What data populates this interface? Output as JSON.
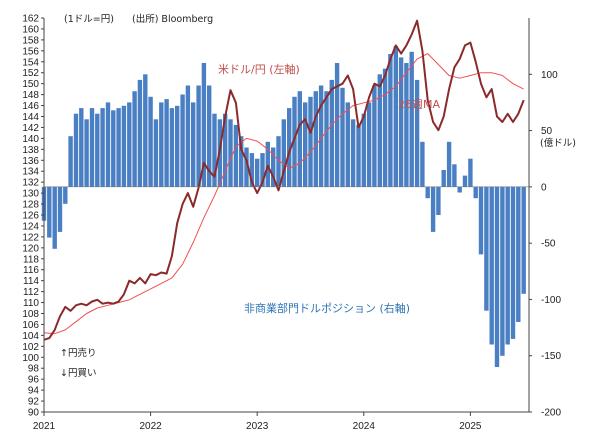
{
  "chart_data": {
    "type": "bar+line",
    "left_axis": {
      "min": 90,
      "max": 162,
      "step": 2
    },
    "right_axis": {
      "min": -200,
      "max": 150,
      "ticks": [
        -200,
        -150,
        -100,
        -50,
        0,
        50,
        100
      ],
      "unit_label": "(億ドル)"
    },
    "x_axis": {
      "start": 2021.0,
      "end": 2025.55,
      "ticks": [
        {
          "value": 2021.0,
          "label": "2021"
        },
        {
          "value": 2022.0,
          "label": "2022"
        },
        {
          "value": 2023.0,
          "label": "2023"
        },
        {
          "value": 2024.0,
          "label": "2024"
        },
        {
          "value": 2025.0,
          "label": "2025"
        }
      ]
    },
    "header_unit": "(1ドル=円)",
    "source": "(出所) Bloomberg",
    "annotations": {
      "yen_sell": "↑円売り",
      "yen_buy": "↓円買い"
    },
    "series": [
      {
        "name": "米ドル/円 (左軸)",
        "axis": "left",
        "kind": "line",
        "color": "#8b2a2a",
        "points": [
          [
            2021.0,
            103.2
          ],
          [
            2021.05,
            103.5
          ],
          [
            2021.1,
            105
          ],
          [
            2021.15,
            107.5
          ],
          [
            2021.2,
            109.2
          ],
          [
            2021.25,
            108.5
          ],
          [
            2021.3,
            109.5
          ],
          [
            2021.35,
            109.8
          ],
          [
            2021.4,
            109.5
          ],
          [
            2021.45,
            110.2
          ],
          [
            2021.5,
            110.5
          ],
          [
            2021.55,
            109.8
          ],
          [
            2021.6,
            110
          ],
          [
            2021.65,
            109.8
          ],
          [
            2021.7,
            110.2
          ],
          [
            2021.75,
            111.5
          ],
          [
            2021.8,
            114
          ],
          [
            2021.85,
            113.5
          ],
          [
            2021.9,
            114.5
          ],
          [
            2021.95,
            113.5
          ],
          [
            2022.0,
            115.2
          ],
          [
            2022.05,
            115
          ],
          [
            2022.1,
            115.5
          ],
          [
            2022.15,
            115.3
          ],
          [
            2022.2,
            118.5
          ],
          [
            2022.25,
            124.5
          ],
          [
            2022.3,
            128
          ],
          [
            2022.35,
            130
          ],
          [
            2022.4,
            127.5
          ],
          [
            2022.45,
            131
          ],
          [
            2022.5,
            135.5
          ],
          [
            2022.55,
            134
          ],
          [
            2022.6,
            133
          ],
          [
            2022.65,
            138
          ],
          [
            2022.7,
            144
          ],
          [
            2022.75,
            148.8
          ],
          [
            2022.8,
            146.5
          ],
          [
            2022.85,
            138
          ],
          [
            2022.9,
            136
          ],
          [
            2022.95,
            132
          ],
          [
            2023.0,
            130
          ],
          [
            2023.05,
            132
          ],
          [
            2023.1,
            135
          ],
          [
            2023.15,
            133
          ],
          [
            2023.2,
            130.5
          ],
          [
            2023.25,
            134
          ],
          [
            2023.3,
            137.5
          ],
          [
            2023.35,
            140
          ],
          [
            2023.4,
            142.5
          ],
          [
            2023.45,
            143.5
          ],
          [
            2023.5,
            141
          ],
          [
            2023.55,
            144
          ],
          [
            2023.6,
            146
          ],
          [
            2023.65,
            147.5
          ],
          [
            2023.7,
            149
          ],
          [
            2023.75,
            149.5
          ],
          [
            2023.8,
            150
          ],
          [
            2023.85,
            151.5
          ],
          [
            2023.9,
            149
          ],
          [
            2023.95,
            142
          ],
          [
            2024.0,
            144
          ],
          [
            2024.05,
            147.5
          ],
          [
            2024.1,
            150
          ],
          [
            2024.15,
            149.5
          ],
          [
            2024.2,
            151.5
          ],
          [
            2024.25,
            154.5
          ],
          [
            2024.3,
            157
          ],
          [
            2024.35,
            155.5
          ],
          [
            2024.4,
            157
          ],
          [
            2024.45,
            159
          ],
          [
            2024.5,
            161.5
          ],
          [
            2024.55,
            156
          ],
          [
            2024.6,
            147
          ],
          [
            2024.65,
            143
          ],
          [
            2024.7,
            141.5
          ],
          [
            2024.75,
            144
          ],
          [
            2024.8,
            149
          ],
          [
            2024.85,
            153
          ],
          [
            2024.9,
            154.5
          ],
          [
            2024.95,
            157
          ],
          [
            2025.0,
            157.5
          ],
          [
            2025.05,
            154
          ],
          [
            2025.1,
            150
          ],
          [
            2025.15,
            147.5
          ],
          [
            2025.2,
            149
          ],
          [
            2025.25,
            144
          ],
          [
            2025.3,
            143
          ],
          [
            2025.35,
            144.5
          ],
          [
            2025.4,
            143
          ],
          [
            2025.45,
            144.5
          ],
          [
            2025.5,
            147
          ]
        ]
      },
      {
        "name": "26週MA",
        "axis": "left",
        "kind": "line",
        "color": "#f05050",
        "points": [
          [
            2021.0,
            104.5
          ],
          [
            2021.1,
            104.3
          ],
          [
            2021.2,
            105
          ],
          [
            2021.3,
            106.5
          ],
          [
            2021.4,
            108
          ],
          [
            2021.5,
            109
          ],
          [
            2021.6,
            109.5
          ],
          [
            2021.7,
            110
          ],
          [
            2021.8,
            110.5
          ],
          [
            2021.9,
            111.5
          ],
          [
            2022.0,
            112.5
          ],
          [
            2022.1,
            113.5
          ],
          [
            2022.2,
            114.5
          ],
          [
            2022.3,
            117
          ],
          [
            2022.4,
            121
          ],
          [
            2022.5,
            125.5
          ],
          [
            2022.6,
            129.5
          ],
          [
            2022.7,
            134
          ],
          [
            2022.8,
            138.5
          ],
          [
            2022.9,
            140
          ],
          [
            2023.0,
            139.5
          ],
          [
            2023.1,
            138
          ],
          [
            2023.2,
            136
          ],
          [
            2023.3,
            134.5
          ],
          [
            2023.4,
            135.5
          ],
          [
            2023.5,
            137.5
          ],
          [
            2023.6,
            140
          ],
          [
            2023.7,
            142.5
          ],
          [
            2023.8,
            144.5
          ],
          [
            2023.9,
            146
          ],
          [
            2024.0,
            146.5
          ],
          [
            2024.1,
            147
          ],
          [
            2024.2,
            148
          ],
          [
            2024.3,
            149.5
          ],
          [
            2024.4,
            152
          ],
          [
            2024.5,
            154.5
          ],
          [
            2024.6,
            155.5
          ],
          [
            2024.7,
            153.5
          ],
          [
            2024.8,
            151.5
          ],
          [
            2024.9,
            151
          ],
          [
            2025.0,
            151.5
          ],
          [
            2025.1,
            152
          ],
          [
            2025.2,
            152
          ],
          [
            2025.3,
            151.5
          ],
          [
            2025.4,
            150
          ],
          [
            2025.5,
            149
          ]
        ]
      },
      {
        "name": "非商業部門ドルポジション (右軸)",
        "axis": "right",
        "kind": "bar",
        "color": "#4a7fc4",
        "points": [
          [
            2021.0,
            -30
          ],
          [
            2021.05,
            -45
          ],
          [
            2021.1,
            -55
          ],
          [
            2021.15,
            -40
          ],
          [
            2021.2,
            -15
          ],
          [
            2021.25,
            45
          ],
          [
            2021.3,
            65
          ],
          [
            2021.35,
            70
          ],
          [
            2021.4,
            60
          ],
          [
            2021.45,
            70
          ],
          [
            2021.5,
            65
          ],
          [
            2021.55,
            70
          ],
          [
            2021.6,
            75
          ],
          [
            2021.65,
            68
          ],
          [
            2021.7,
            70
          ],
          [
            2021.75,
            72
          ],
          [
            2021.8,
            75
          ],
          [
            2021.85,
            85
          ],
          [
            2021.9,
            95
          ],
          [
            2021.95,
            100
          ],
          [
            2022.0,
            80
          ],
          [
            2022.05,
            60
          ],
          [
            2022.1,
            75
          ],
          [
            2022.15,
            78
          ],
          [
            2022.2,
            70
          ],
          [
            2022.25,
            72
          ],
          [
            2022.3,
            82
          ],
          [
            2022.35,
            90
          ],
          [
            2022.4,
            75
          ],
          [
            2022.45,
            90
          ],
          [
            2022.5,
            110
          ],
          [
            2022.55,
            90
          ],
          [
            2022.6,
            65
          ],
          [
            2022.65,
            60
          ],
          [
            2022.7,
            65
          ],
          [
            2022.75,
            60
          ],
          [
            2022.8,
            55
          ],
          [
            2022.85,
            45
          ],
          [
            2022.9,
            35
          ],
          [
            2022.95,
            30
          ],
          [
            2023.0,
            25
          ],
          [
            2023.05,
            30
          ],
          [
            2023.1,
            40
          ],
          [
            2023.15,
            35
          ],
          [
            2023.2,
            45
          ],
          [
            2023.25,
            60
          ],
          [
            2023.3,
            70
          ],
          [
            2023.35,
            80
          ],
          [
            2023.4,
            85
          ],
          [
            2023.45,
            75
          ],
          [
            2023.5,
            80
          ],
          [
            2023.55,
            85
          ],
          [
            2023.6,
            90
          ],
          [
            2023.65,
            85
          ],
          [
            2023.7,
            95
          ],
          [
            2023.75,
            110
          ],
          [
            2023.8,
            88
          ],
          [
            2023.85,
            75
          ],
          [
            2023.9,
            60
          ],
          [
            2023.95,
            55
          ],
          [
            2024.0,
            65
          ],
          [
            2024.05,
            75
          ],
          [
            2024.1,
            90
          ],
          [
            2024.15,
            100
          ],
          [
            2024.2,
            105
          ],
          [
            2024.25,
            118
          ],
          [
            2024.3,
            125
          ],
          [
            2024.35,
            115
          ],
          [
            2024.4,
            110
          ],
          [
            2024.45,
            120
          ],
          [
            2024.5,
            95
          ],
          [
            2024.55,
            40
          ],
          [
            2024.6,
            -10
          ],
          [
            2024.65,
            -40
          ],
          [
            2024.7,
            -25
          ],
          [
            2024.75,
            15
          ],
          [
            2024.8,
            40
          ],
          [
            2024.85,
            20
          ],
          [
            2024.9,
            -5
          ],
          [
            2024.95,
            10
          ],
          [
            2025.0,
            25
          ],
          [
            2025.05,
            -10
          ],
          [
            2025.1,
            -60
          ],
          [
            2025.15,
            -110
          ],
          [
            2025.2,
            -140
          ],
          [
            2025.25,
            -160
          ],
          [
            2025.3,
            -150
          ],
          [
            2025.35,
            -140
          ],
          [
            2025.4,
            -135
          ],
          [
            2025.45,
            -120
          ],
          [
            2025.5,
            -95
          ]
        ]
      }
    ]
  }
}
